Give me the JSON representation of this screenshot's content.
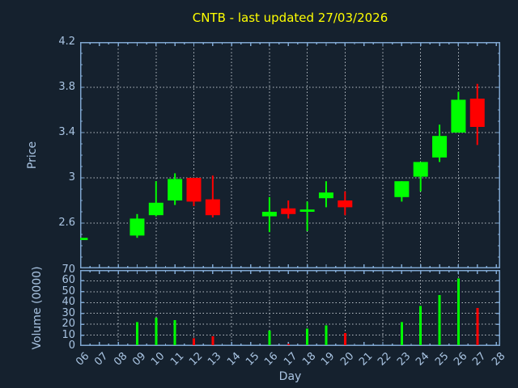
{
  "title": "CNTB - last updated 27/03/2026",
  "colors": {
    "background": "#15212e",
    "title": "#ffff00",
    "labels": "#a9c4e2",
    "spines": "#7fa6d0",
    "grid": "#b8bfc6",
    "up": "#00ff00",
    "down": "#ff0000"
  },
  "chart_data": {
    "type": "candlestick",
    "title": "CNTB - last updated 27/03/2026",
    "xlabel": "Day",
    "legend": "none",
    "grid": "dashed, vertical lines at even days, horizontal lines at y ticks",
    "x_tick_labels": [
      "06",
      "07",
      "08",
      "09",
      "10",
      "11",
      "12",
      "13",
      "14",
      "15",
      "16",
      "17",
      "18",
      "19",
      "20",
      "21",
      "22",
      "23",
      "24",
      "25",
      "26",
      "27",
      "28"
    ],
    "x_grid_days": [
      8,
      10,
      12,
      14,
      16,
      18,
      20,
      22,
      24,
      26
    ],
    "price_axis": {
      "label": "Price",
      "ylim": [
        2.2,
        4.2
      ],
      "tick_values": [
        2.6,
        3.0,
        3.4,
        3.8,
        4.2
      ],
      "tick_labels": [
        "2.6",
        "3",
        "3.4",
        "3.8",
        "4.2"
      ]
    },
    "volume_axis": {
      "label": "Volume (0000)",
      "ylim": [
        0,
        70
      ],
      "tick_values": [
        0,
        10,
        20,
        30,
        40,
        50,
        60,
        70
      ],
      "tick_labels": [
        "0",
        "10",
        "20",
        "30",
        "40",
        "50",
        "60",
        "70"
      ]
    },
    "candles": [
      {
        "day": 6,
        "open": 2.45,
        "high": 2.47,
        "low": 2.45,
        "close": 2.47
      },
      {
        "day": 9,
        "open": 2.49,
        "high": 2.68,
        "low": 2.47,
        "close": 2.64
      },
      {
        "day": 10,
        "open": 2.67,
        "high": 2.97,
        "low": 2.66,
        "close": 2.78
      },
      {
        "day": 11,
        "open": 2.8,
        "high": 3.04,
        "low": 2.76,
        "close": 2.99
      },
      {
        "day": 12,
        "open": 3.0,
        "high": 3.0,
        "low": 2.75,
        "close": 2.79
      },
      {
        "day": 13,
        "open": 2.81,
        "high": 3.02,
        "low": 2.65,
        "close": 2.67
      },
      {
        "day": 16,
        "open": 2.66,
        "high": 2.83,
        "low": 2.52,
        "close": 2.7
      },
      {
        "day": 17,
        "open": 2.73,
        "high": 2.8,
        "low": 2.64,
        "close": 2.68
      },
      {
        "day": 18,
        "open": 2.7,
        "high": 2.79,
        "low": 2.53,
        "close": 2.72
      },
      {
        "day": 19,
        "open": 2.82,
        "high": 2.97,
        "low": 2.74,
        "close": 2.87
      },
      {
        "day": 20,
        "open": 2.8,
        "high": 2.88,
        "low": 2.67,
        "close": 2.74
      },
      {
        "day": 23,
        "open": 2.83,
        "high": 2.97,
        "low": 2.79,
        "close": 2.97
      },
      {
        "day": 24,
        "open": 3.01,
        "high": 3.14,
        "low": 2.88,
        "close": 3.14
      },
      {
        "day": 25,
        "open": 3.18,
        "high": 3.47,
        "low": 3.14,
        "close": 3.37
      },
      {
        "day": 26,
        "open": 3.4,
        "high": 3.76,
        "low": 3.4,
        "close": 3.69
      },
      {
        "day": 27,
        "open": 3.7,
        "high": 3.83,
        "low": 3.29,
        "close": 3.45
      }
    ],
    "volumes": [
      {
        "day": 9,
        "value": 22
      },
      {
        "day": 10,
        "value": 26
      },
      {
        "day": 11,
        "value": 24
      },
      {
        "day": 12,
        "value": 7
      },
      {
        "day": 13,
        "value": 9
      },
      {
        "day": 16,
        "value": 14
      },
      {
        "day": 17,
        "value": 2
      },
      {
        "day": 18,
        "value": 16
      },
      {
        "day": 19,
        "value": 19
      },
      {
        "day": 20,
        "value": 12
      },
      {
        "day": 23,
        "value": 22
      },
      {
        "day": 24,
        "value": 37
      },
      {
        "day": 25,
        "value": 47
      },
      {
        "day": 26,
        "value": 62
      },
      {
        "day": 27,
        "value": 35
      }
    ]
  }
}
